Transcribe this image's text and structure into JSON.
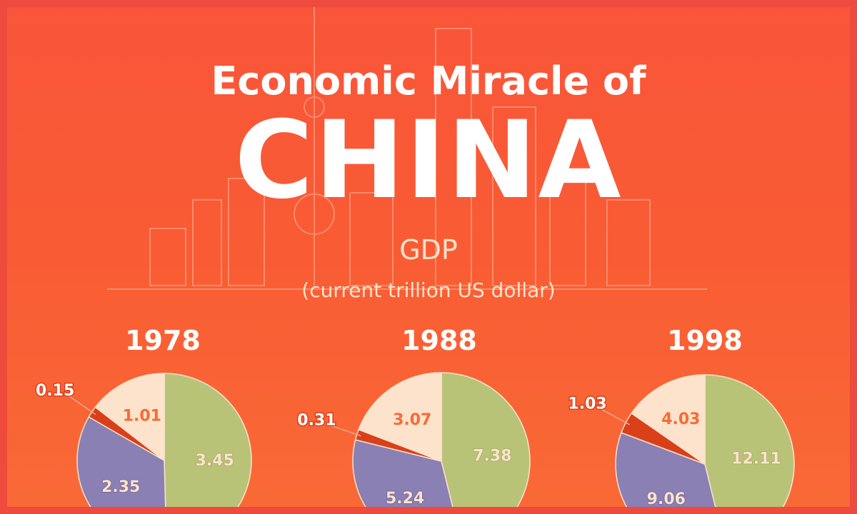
{
  "title_line1": "Economic Miracle of",
  "title_line2": "CHINA",
  "subtitle": "GDP",
  "unit": "(current trillion US dollar)",
  "colors": {
    "green": "#b8c378",
    "purple": "#8a80b4",
    "red": "#d9401a",
    "beige": "#fde3cc"
  },
  "chart_data": [
    {
      "type": "pie",
      "title": "1978",
      "labels": [
        "slice-green",
        "slice-purple",
        "slice-red",
        "slice-beige"
      ],
      "values": [
        3.45,
        2.35,
        0.15,
        1.01
      ],
      "value_labels": [
        "3.45",
        "2.35",
        "0.15",
        "1.01"
      ]
    },
    {
      "type": "pie",
      "title": "1988",
      "labels": [
        "slice-green",
        "slice-purple",
        "slice-red",
        "slice-beige"
      ],
      "values": [
        7.38,
        5.24,
        0.31,
        3.07
      ],
      "value_labels": [
        "7.38",
        "5.24",
        "0.31",
        "3.07"
      ]
    },
    {
      "type": "pie",
      "title": "1998",
      "labels": [
        "slice-green",
        "slice-purple",
        "slice-red",
        "slice-beige"
      ],
      "values": [
        12.11,
        9.06,
        1.03,
        4.03
      ],
      "value_labels": [
        "12.11",
        "9.06",
        "1.03",
        "4.03"
      ]
    }
  ]
}
